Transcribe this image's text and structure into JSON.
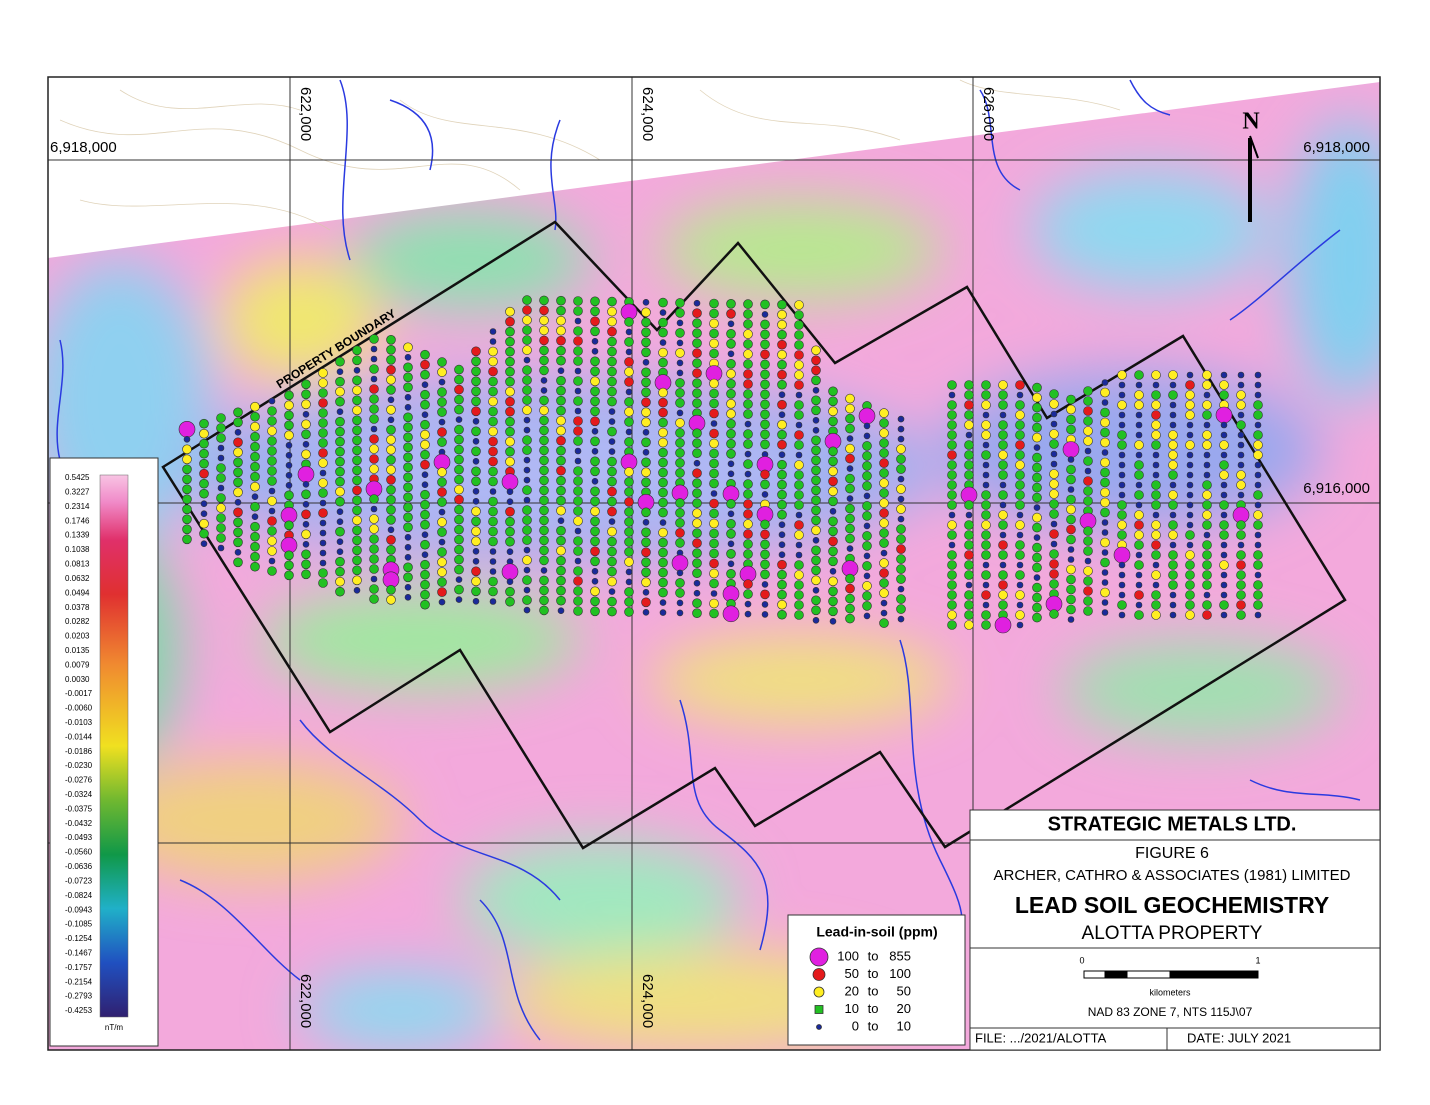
{
  "map": {
    "eastings": [
      "622,000",
      "624,000",
      "626,000"
    ],
    "northings": [
      "6,918,000",
      "6,916,000"
    ],
    "north": "N",
    "boundary_label": "PROPERTY BOUNDARY"
  },
  "colorbar": {
    "labels": [
      "0.5425",
      "0.3227",
      "0.2314",
      "0.1746",
      "0.1339",
      "0.1038",
      "0.0813",
      "0.0632",
      "0.0494",
      "0.0378",
      "0.0282",
      "0.0203",
      "0.0135",
      "0.0079",
      "0.0030",
      "-0.0017",
      "-0.0060",
      "-0.0103",
      "-0.0144",
      "-0.0186",
      "-0.0230",
      "-0.0276",
      "-0.0324",
      "-0.0375",
      "-0.0432",
      "-0.0493",
      "-0.0560",
      "-0.0636",
      "-0.0723",
      "-0.0824",
      "-0.0943",
      "-0.1085",
      "-0.1254",
      "-0.1467",
      "-0.1757",
      "-0.2154",
      "-0.2793",
      "-0.4253"
    ],
    "unit": "nT/m"
  },
  "legend": {
    "title": "Lead-in-soil (ppm)",
    "range_word": "to",
    "items": [
      {
        "min": 100,
        "max": 855
      },
      {
        "min": 50,
        "max": 100
      },
      {
        "min": 20,
        "max": 50
      },
      {
        "min": 10,
        "max": 20
      },
      {
        "min": 0,
        "max": 10
      }
    ]
  },
  "title_block": {
    "company": "STRATEGIC METALS LTD.",
    "figure": "FIGURE 6",
    "consultant": "ARCHER, CATHRO & ASSOCIATES (1981) LIMITED",
    "title": "LEAD SOIL GEOCHEMISTRY",
    "subtitle": "ALOTTA PROPERTY",
    "scale_start": "0",
    "scale_end": "1",
    "scale_unit": "kilometers",
    "projection": "NAD 83 ZONE 7, NTS 115J\\07",
    "file": "FILE: .../2021/ALOTTA",
    "date": "DATE: JULY 2021"
  }
}
